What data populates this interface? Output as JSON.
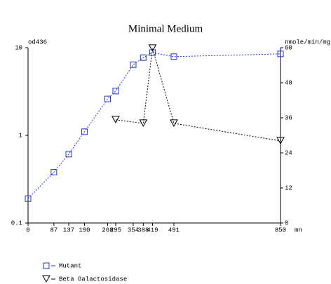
{
  "chart_data": {
    "type": "line",
    "title": "Minimal Medium",
    "ylabel": "od436",
    "y2label": "nmole/min/mg",
    "xlabel": "mn",
    "xlim": [
      0,
      850
    ],
    "xticks": [
      0,
      87,
      137,
      190,
      268,
      295,
      354,
      388,
      419,
      491,
      850
    ],
    "ylim": [
      0.1,
      10
    ],
    "yticks": [
      0.1,
      1,
      10
    ],
    "ylog": true,
    "y2lim": [
      0,
      60
    ],
    "y2ticks": [
      0,
      12,
      24,
      36,
      48,
      60
    ],
    "series": [
      {
        "name": "Mutant",
        "color": "#2233dd",
        "marker": "square",
        "x": [
          0,
          87,
          137,
          190,
          268,
          295,
          354,
          388,
          419,
          491,
          850
        ],
        "values": [
          0.19,
          0.38,
          0.61,
          1.1,
          2.6,
          3.2,
          6.4,
          7.7,
          8.8,
          7.9,
          8.5
        ]
      },
      {
        "name": "Beta Galactosidase",
        "color": "#000000",
        "marker": "triangle",
        "axis": "y2",
        "x": [
          295,
          388,
          419,
          491,
          850
        ],
        "values": [
          35.3,
          34.1,
          59.8,
          34.1,
          28.1
        ]
      }
    ]
  }
}
